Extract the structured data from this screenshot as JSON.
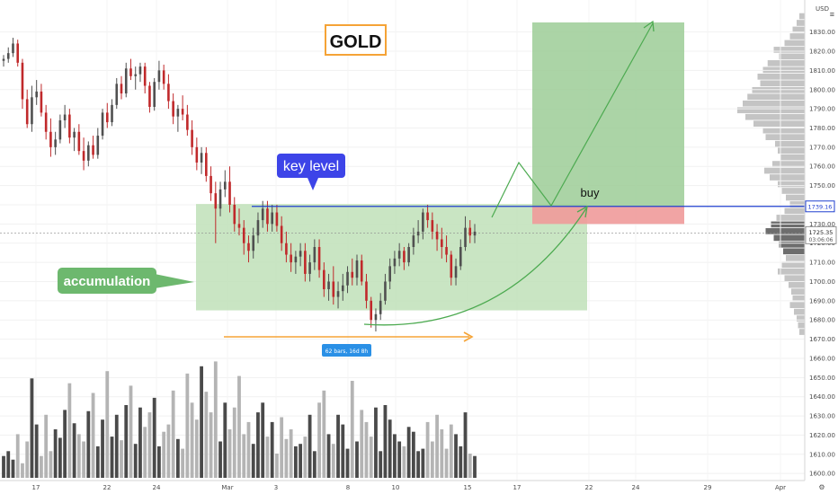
{
  "chart_data": {
    "type": "candlestick",
    "title": "GOLD",
    "currency": "USD",
    "y_axis": {
      "ticks": [
        1600,
        1610,
        1620,
        1630,
        1640,
        1650,
        1660,
        1670,
        1680,
        1690,
        1700,
        1710,
        1720,
        1730,
        1740,
        1750,
        1760,
        1770,
        1780,
        1790,
        1800,
        1810,
        1820,
        1830
      ],
      "tick_labels": [
        "1600.00",
        "1610.00",
        "1620.00",
        "1630.00",
        "1640.00",
        "1650.00",
        "1660.00",
        "1670.00",
        "1680.00",
        "1690.00",
        "1700.00",
        "1710.00",
        "1720.00",
        "1730.00",
        "1740.00",
        "1750.00",
        "1760.00",
        "1770.00",
        "1780.00",
        "1790.00",
        "1800.00",
        "1810.00",
        "1820.00",
        "1830.00"
      ],
      "range": [
        1594,
        1842
      ]
    },
    "x_axis": {
      "tick_labels": [
        "17",
        "22",
        "24",
        "Mar",
        "3",
        "8",
        "10",
        "15",
        "17",
        "22",
        "24",
        "29",
        "Apr"
      ]
    },
    "price_labels": {
      "key_level": "1739.16",
      "current_price": "1725.35",
      "countdown": "03:06:06"
    },
    "levels": {
      "key_level_value": 1739.16,
      "current_price_value": 1725.35,
      "accumulation_range": [
        1685,
        1739
      ],
      "stop_zone": [
        1730,
        1739
      ],
      "target_zone": [
        1739,
        1835
      ]
    },
    "annotations": {
      "key_level": "key level",
      "accumulation": "accumulation",
      "buy": "buy",
      "range_measure": "62 bars, 16d 8h"
    },
    "candles_ohlc": [
      [
        1815,
        1818,
        1812,
        1816
      ],
      [
        1816,
        1822,
        1814,
        1819
      ],
      [
        1819,
        1827,
        1817,
        1824
      ],
      [
        1824,
        1826,
        1812,
        1814
      ],
      [
        1814,
        1816,
        1790,
        1795
      ],
      [
        1795,
        1800,
        1780,
        1782
      ],
      [
        1782,
        1802,
        1778,
        1796
      ],
      [
        1796,
        1805,
        1792,
        1799
      ],
      [
        1799,
        1803,
        1786,
        1788
      ],
      [
        1788,
        1792,
        1774,
        1778
      ],
      [
        1778,
        1785,
        1765,
        1770
      ],
      [
        1770,
        1778,
        1766,
        1774
      ],
      [
        1774,
        1787,
        1772,
        1784
      ],
      [
        1784,
        1792,
        1780,
        1787
      ],
      [
        1787,
        1790,
        1772,
        1775
      ],
      [
        1775,
        1780,
        1768,
        1778
      ],
      [
        1778,
        1782,
        1766,
        1768
      ],
      [
        1768,
        1775,
        1758,
        1763
      ],
      [
        1763,
        1773,
        1760,
        1771
      ],
      [
        1771,
        1776,
        1764,
        1766
      ],
      [
        1766,
        1780,
        1764,
        1776
      ],
      [
        1776,
        1790,
        1774,
        1788
      ],
      [
        1788,
        1793,
        1780,
        1783
      ],
      [
        1783,
        1795,
        1781,
        1792
      ],
      [
        1792,
        1806,
        1790,
        1803
      ],
      [
        1803,
        1807,
        1795,
        1798
      ],
      [
        1798,
        1814,
        1796,
        1811
      ],
      [
        1811,
        1816,
        1805,
        1807
      ],
      [
        1807,
        1812,
        1800,
        1808
      ],
      [
        1808,
        1814,
        1804,
        1812
      ],
      [
        1812,
        1814,
        1798,
        1802
      ],
      [
        1802,
        1804,
        1788,
        1791
      ],
      [
        1791,
        1806,
        1789,
        1804
      ],
      [
        1804,
        1815,
        1800,
        1810
      ],
      [
        1810,
        1813,
        1800,
        1803
      ],
      [
        1803,
        1808,
        1790,
        1794
      ],
      [
        1794,
        1798,
        1782,
        1786
      ],
      [
        1786,
        1792,
        1778,
        1790
      ],
      [
        1790,
        1797,
        1784,
        1787
      ],
      [
        1787,
        1792,
        1776,
        1779
      ],
      [
        1779,
        1784,
        1766,
        1770
      ],
      [
        1770,
        1775,
        1758,
        1762
      ],
      [
        1762,
        1770,
        1756,
        1767
      ],
      [
        1767,
        1770,
        1752,
        1755
      ],
      [
        1755,
        1760,
        1742,
        1746
      ],
      [
        1746,
        1752,
        1720,
        1738
      ],
      [
        1738,
        1752,
        1734,
        1748
      ],
      [
        1748,
        1758,
        1744,
        1752
      ],
      [
        1752,
        1760,
        1736,
        1740
      ],
      [
        1740,
        1744,
        1726,
        1730
      ],
      [
        1730,
        1738,
        1724,
        1728
      ],
      [
        1728,
        1732,
        1714,
        1720
      ],
      [
        1720,
        1724,
        1710,
        1716
      ],
      [
        1716,
        1728,
        1712,
        1724
      ],
      [
        1724,
        1736,
        1720,
        1732
      ],
      [
        1732,
        1742,
        1728,
        1738
      ],
      [
        1738,
        1742,
        1726,
        1730
      ],
      [
        1730,
        1740,
        1726,
        1736
      ],
      [
        1736,
        1740,
        1726,
        1729
      ],
      [
        1729,
        1734,
        1716,
        1720
      ],
      [
        1720,
        1726,
        1710,
        1714
      ],
      [
        1714,
        1720,
        1705,
        1710
      ],
      [
        1710,
        1716,
        1704,
        1713
      ],
      [
        1713,
        1720,
        1708,
        1716
      ],
      [
        1716,
        1720,
        1700,
        1704
      ],
      [
        1704,
        1714,
        1700,
        1710
      ],
      [
        1710,
        1722,
        1706,
        1718
      ],
      [
        1718,
        1722,
        1702,
        1706
      ],
      [
        1706,
        1710,
        1692,
        1696
      ],
      [
        1696,
        1704,
        1690,
        1700
      ],
      [
        1700,
        1708,
        1688,
        1692
      ],
      [
        1692,
        1700,
        1686,
        1695
      ],
      [
        1695,
        1704,
        1690,
        1698
      ],
      [
        1698,
        1708,
        1694,
        1705
      ],
      [
        1705,
        1712,
        1698,
        1702
      ],
      [
        1702,
        1714,
        1698,
        1711
      ],
      [
        1711,
        1714,
        1698,
        1700
      ],
      [
        1700,
        1704,
        1686,
        1690
      ],
      [
        1690,
        1692,
        1676,
        1680
      ],
      [
        1680,
        1686,
        1674,
        1683
      ],
      [
        1683,
        1694,
        1680,
        1690
      ],
      [
        1690,
        1704,
        1688,
        1700
      ],
      [
        1700,
        1712,
        1696,
        1708
      ],
      [
        1708,
        1716,
        1704,
        1712
      ],
      [
        1712,
        1720,
        1708,
        1716
      ],
      [
        1716,
        1718,
        1706,
        1710
      ],
      [
        1710,
        1720,
        1708,
        1718
      ],
      [
        1718,
        1728,
        1714,
        1724
      ],
      [
        1724,
        1732,
        1720,
        1726
      ],
      [
        1726,
        1738,
        1722,
        1736
      ],
      [
        1736,
        1740,
        1728,
        1732
      ],
      [
        1732,
        1736,
        1722,
        1726
      ],
      [
        1726,
        1730,
        1716,
        1722
      ],
      [
        1722,
        1728,
        1712,
        1718
      ],
      [
        1718,
        1724,
        1710,
        1714
      ],
      [
        1714,
        1716,
        1698,
        1702
      ],
      [
        1702,
        1712,
        1698,
        1708
      ],
      [
        1708,
        1722,
        1706,
        1718
      ],
      [
        1718,
        1734,
        1716,
        1728
      ],
      [
        1728,
        1732,
        1720,
        1724
      ],
      [
        1724,
        1730,
        1720,
        1726
      ]
    ],
    "volume": [
      0.18,
      0.22,
      0.15,
      0.36,
      0.12,
      0.3,
      0.82,
      0.44,
      0.18,
      0.52,
      0.22,
      0.4,
      0.33,
      0.56,
      0.78,
      0.45,
      0.36,
      0.3,
      0.55,
      0.7,
      0.26,
      0.48,
      0.88,
      0.34,
      0.52,
      0.31,
      0.6,
      0.76,
      0.28,
      0.58,
      0.42,
      0.54,
      0.66,
      0.26,
      0.38,
      0.44,
      0.72,
      0.32,
      0.24,
      0.86,
      0.62,
      0.48,
      0.92,
      0.71,
      0.54,
      0.96,
      0.3,
      0.62,
      0.4,
      0.58,
      0.84,
      0.36,
      0.46,
      0.28,
      0.54,
      0.62,
      0.34,
      0.46,
      0.2,
      0.5,
      0.32,
      0.4,
      0.26,
      0.28,
      0.34,
      0.52,
      0.22,
      0.62,
      0.72,
      0.36,
      0.28,
      0.52,
      0.44,
      0.24,
      0.8,
      0.3,
      0.56,
      0.46,
      0.34,
      0.58,
      0.22,
      0.6,
      0.48,
      0.36,
      0.3,
      0.26,
      0.42,
      0.38,
      0.22,
      0.24,
      0.46,
      0.3,
      0.52,
      0.4,
      0.24,
      0.44,
      0.36,
      0.26,
      0.54,
      0.2,
      0.18
    ],
    "volume_profile": [
      0.08,
      0.12,
      0.18,
      0.22,
      0.3,
      0.46,
      0.38,
      0.55,
      0.62,
      0.7,
      0.66,
      0.78,
      0.85,
      0.92,
      1.0,
      0.88,
      0.76,
      0.62,
      0.58,
      0.44,
      0.4,
      0.36,
      0.48,
      0.6,
      0.52,
      0.4,
      0.34,
      0.28,
      0.22,
      0.3,
      0.42,
      0.5,
      0.58,
      0.46,
      0.38,
      0.32,
      0.28,
      0.34,
      0.4,
      0.3,
      0.24,
      0.2,
      0.18,
      0.22,
      0.16,
      0.12,
      0.1,
      0.08
    ]
  },
  "colors": {
    "bull": "#505050",
    "bear": "#c0292b",
    "key_line": "#1f3fcf",
    "accum_fill": "#bfe0b8",
    "accum_badge": "#6db86e",
    "key_badge": "#3d44e8",
    "target_fill": "#9ccc97",
    "stop_fill": "#ef9a9a",
    "arrow_green": "#4caa50",
    "measure_orange": "#f5a336",
    "measure_badge": "#2a90e6",
    "title_border": "#f5a336"
  }
}
